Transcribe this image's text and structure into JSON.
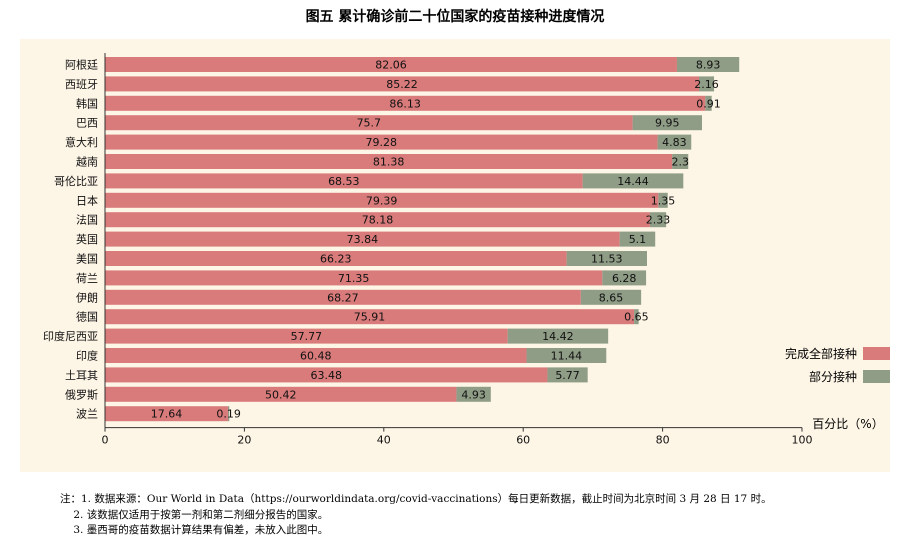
{
  "title": "图五  累计确诊前二十位国家的疫苗接种进度情况",
  "chart_data": {
    "type": "bar",
    "orientation": "horizontal",
    "stacked": true,
    "categories": [
      "阿根廷",
      "西班牙",
      "韩国",
      "巴西",
      "意大利",
      "越南",
      "哥伦比亚",
      "日本",
      "法国",
      "英国",
      "美国",
      "荷兰",
      "伊朗",
      "德国",
      "印度尼西亚",
      "印度",
      "土耳其",
      "俄罗斯",
      "波兰"
    ],
    "series": [
      {
        "name": "完成全部接种",
        "color": "#d97b7b",
        "values": [
          82.06,
          85.22,
          86.13,
          75.7,
          79.28,
          81.38,
          68.53,
          79.39,
          78.18,
          73.84,
          66.23,
          71.35,
          68.27,
          75.91,
          57.77,
          60.48,
          63.48,
          50.42,
          17.64
        ]
      },
      {
        "name": "部分接种",
        "color": "#8f9c86",
        "values": [
          8.93,
          2.16,
          0.91,
          9.95,
          4.83,
          2.3,
          14.44,
          1.35,
          2.33,
          5.1,
          11.53,
          6.28,
          8.65,
          0.65,
          14.42,
          11.44,
          5.77,
          4.93,
          0.19
        ]
      }
    ],
    "xlim": [
      0,
      100
    ],
    "xticks": [
      0,
      20,
      40,
      60,
      80,
      100
    ],
    "xlabel": "百分比（%）",
    "legend_position": "right",
    "grid": false
  },
  "notes": [
    "注：1. 数据来源：Our World in Data（https://ourworldindata.org/covid-vaccinations）每日更新数据，截止时间为北京时间 3 月 28 日 17 时。",
    "    2. 该数据仅适用于按第一剂和第二剂细分报告的国家。",
    "    3. 墨西哥的疫苗数据计算结果有偏差，未放入此图中。"
  ]
}
